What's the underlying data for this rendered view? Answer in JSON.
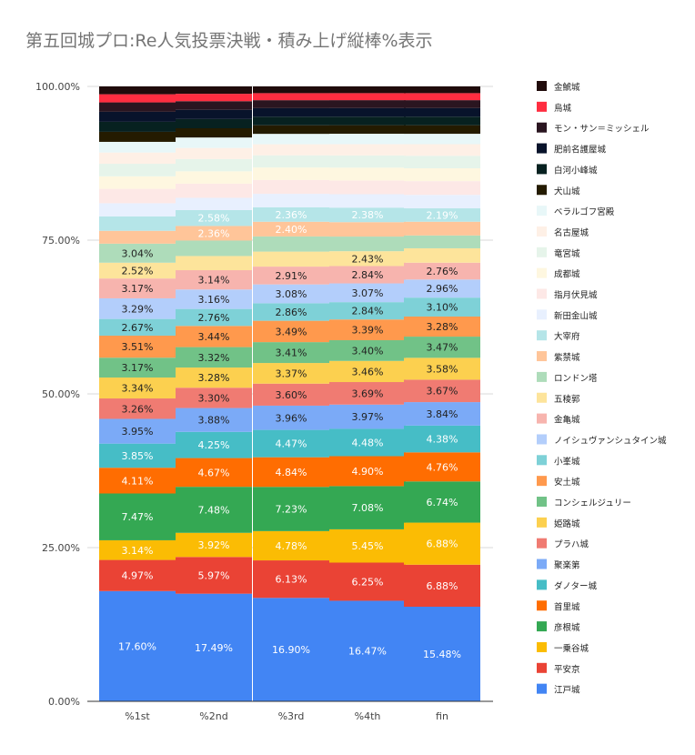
{
  "title": "第五回城プロ:Re人気投票決戦・積み上げ縦棒%表示",
  "chart_data": {
    "type": "bar",
    "stacked": "percent",
    "title": "第五回城プロ:Re人気投票決戦・積み上げ縦棒%表示",
    "xlabel": "",
    "ylabel": "",
    "ylim": [
      0,
      100
    ],
    "yticks": [
      "0.00%",
      "25.00%",
      "50.00%",
      "75.00%",
      "100.00%"
    ],
    "grid": true,
    "legend_position": "right",
    "categories": [
      "%1st",
      "%2nd",
      "%3rd",
      "%4th",
      "fin"
    ],
    "series": [
      {
        "name": "江戸城",
        "color": "#4285f4",
        "values": [
          17.6,
          17.49,
          16.9,
          16.47,
          15.48
        ]
      },
      {
        "name": "平安京",
        "color": "#ea4335",
        "values": [
          4.97,
          5.97,
          6.13,
          6.25,
          6.88
        ]
      },
      {
        "name": "一乗谷城",
        "color": "#fbbc04",
        "values": [
          3.14,
          3.92,
          4.78,
          5.45,
          6.88
        ]
      },
      {
        "name": "彦根城",
        "color": "#34a853",
        "values": [
          7.47,
          7.48,
          7.23,
          7.08,
          6.74
        ]
      },
      {
        "name": "首里城",
        "color": "#ff6d01",
        "values": [
          4.11,
          4.67,
          4.84,
          4.9,
          4.76
        ]
      },
      {
        "name": "ダノター城",
        "color": "#46bdc6",
        "values": [
          3.85,
          4.25,
          4.47,
          4.48,
          4.38
        ]
      },
      {
        "name": "聚楽第",
        "color": "#7baaf7",
        "values": [
          3.95,
          3.88,
          3.96,
          3.97,
          3.84
        ]
      },
      {
        "name": "プラハ城",
        "color": "#f07b72",
        "values": [
          3.26,
          3.3,
          3.6,
          3.69,
          3.67
        ]
      },
      {
        "name": "姫路城",
        "color": "#fcd04f",
        "values": [
          3.34,
          3.28,
          3.37,
          3.46,
          3.58
        ]
      },
      {
        "name": "コンシェルジュリー",
        "color": "#71c287",
        "values": [
          3.17,
          3.32,
          3.41,
          3.4,
          3.47
        ]
      },
      {
        "name": "安土城",
        "color": "#ff994d",
        "values": [
          3.51,
          3.44,
          3.49,
          3.39,
          3.28
        ]
      },
      {
        "name": "小峯城",
        "color": "#7ed1d7",
        "values": [
          2.67,
          2.76,
          2.86,
          2.84,
          3.1
        ]
      },
      {
        "name": "ノイシュヴァンシュタイン城",
        "color": "#b3cefb",
        "values": [
          3.29,
          3.16,
          3.08,
          3.07,
          2.96
        ]
      },
      {
        "name": "金亀城",
        "color": "#f7b4ae",
        "values": [
          3.17,
          3.14,
          2.91,
          2.84,
          2.76
        ]
      },
      {
        "name": "五稜郭",
        "color": "#fde49b",
        "values": [
          2.52,
          2.3,
          2.45,
          2.43,
          2.35
        ]
      },
      {
        "name": "ロンドン塔",
        "color": "#aedcba",
        "values": [
          3.04,
          2.52,
          2.48,
          2.4,
          2.1
        ]
      },
      {
        "name": "紫禁城",
        "color": "#ffc599",
        "values": [
          2.05,
          2.36,
          2.4,
          2.36,
          2.25
        ]
      },
      {
        "name": "大宰府",
        "color": "#b5e5e8",
        "values": [
          2.3,
          2.58,
          2.36,
          2.38,
          2.19
        ]
      },
      {
        "name": "新田金山城",
        "color": "#e8f0fe",
        "values": [
          2.1,
          2.0,
          2.2,
          2.2,
          2.2
        ]
      },
      {
        "name": "指月伏見城",
        "color": "#fde8e6",
        "values": [
          2.3,
          2.3,
          2.25,
          2.25,
          2.25
        ]
      },
      {
        "name": "成都城",
        "color": "#fef7e0",
        "values": [
          2.0,
          2.0,
          2.05,
          2.1,
          2.1
        ]
      },
      {
        "name": "竜宮城",
        "color": "#e6f4ea",
        "values": [
          2.0,
          2.0,
          2.0,
          2.0,
          2.05
        ]
      },
      {
        "name": "名古屋城",
        "color": "#fef0e6",
        "values": [
          1.8,
          1.8,
          1.8,
          1.85,
          1.9
        ]
      },
      {
        "name": "ベラルゴフ宮殿",
        "color": "#e8f7f8",
        "values": [
          1.7,
          1.7,
          1.7,
          1.7,
          1.7
        ]
      },
      {
        "name": "犬山城",
        "color": "#241b00",
        "values": [
          1.6,
          1.5,
          1.4,
          1.4,
          1.4
        ]
      },
      {
        "name": "白河小峰城",
        "color": "#072120",
        "values": [
          1.6,
          1.5,
          1.4,
          1.4,
          1.4
        ]
      },
      {
        "name": "肥前名護屋城",
        "color": "#08132b",
        "values": [
          1.6,
          1.5,
          1.4,
          1.4,
          1.4
        ]
      },
      {
        "name": "モン・サン＝ミッシェル",
        "color": "#2a1520",
        "values": [
          1.5,
          1.4,
          1.3,
          1.3,
          1.3
        ]
      },
      {
        "name": "烏城",
        "color": "#ff2d40",
        "values": [
          1.3,
          1.2,
          1.15,
          1.15,
          1.15
        ]
      },
      {
        "name": "金鯱城",
        "color": "#200b0b",
        "values": [
          1.25,
          1.2,
          1.1,
          1.1,
          1.1
        ]
      }
    ],
    "data_labels": [
      {
        "series": "江戸城",
        "labels": [
          "17.60%",
          "17.49%",
          "16.90%",
          "16.47%",
          "15.48%"
        ],
        "color": "#ffffff"
      },
      {
        "series": "平安京",
        "labels": [
          "4.97%",
          "5.97%",
          "6.13%",
          "6.25%",
          "6.88%"
        ],
        "color": "#ffffff"
      },
      {
        "series": "一乗谷城",
        "labels": [
          "3.14%",
          "3.92%",
          "4.78%",
          "5.45%",
          "6.88%"
        ],
        "color": "#ffffff"
      },
      {
        "series": "彦根城",
        "labels": [
          "7.47%",
          "7.48%",
          "7.23%",
          "7.08%",
          "6.74%"
        ],
        "color": "#ffffff"
      },
      {
        "series": "首里城",
        "labels": [
          "4.11%",
          "4.67%",
          "4.84%",
          "4.90%",
          "4.76%"
        ],
        "color": "#ffffff"
      },
      {
        "series": "ダノター城",
        "labels": [
          "3.85%",
          "4.25%",
          "4.47%",
          "4.48%",
          "4.38%"
        ],
        "color": "#ffffff"
      },
      {
        "series": "聚楽第",
        "labels": [
          "3.95%",
          "3.88%",
          "3.96%",
          "3.97%",
          "3.84%"
        ],
        "color": "#222222"
      },
      {
        "series": "プラハ城",
        "labels": [
          "3.26%",
          "3.30%",
          "3.60%",
          "3.69%",
          "3.67%"
        ],
        "color": "#222222"
      },
      {
        "series": "姫路城",
        "labels": [
          "3.34%",
          "3.28%",
          "3.37%",
          "3.46%",
          "3.58%"
        ],
        "color": "#222222"
      },
      {
        "series": "コンシェルジュリー",
        "labels": [
          "3.17%",
          "3.32%",
          "3.41%",
          "3.40%",
          "3.47%"
        ],
        "color": "#222222"
      },
      {
        "series": "安土城",
        "labels": [
          "3.51%",
          "3.44%",
          "3.49%",
          "3.39%",
          "3.28%"
        ],
        "color": "#222222"
      },
      {
        "series": "小峯城",
        "labels": [
          "2.67%",
          "2.76%",
          "2.86%",
          "2.84%",
          "3.10%"
        ],
        "color": "#222222"
      },
      {
        "series": "ノイシュヴァンシュタイン城",
        "labels": [
          "3.29%",
          "3.16%",
          "3.08%",
          "3.07%",
          "2.96%"
        ],
        "color": "#222222"
      },
      {
        "series": "金亀城",
        "labels": [
          "3.17%",
          "3.14%",
          "2.91%",
          "2.84%",
          "2.76%"
        ],
        "color": "#222222"
      },
      {
        "series": "五稜郭",
        "labels": [
          "2.52%",
          "",
          "",
          "2.43%",
          ""
        ],
        "color": "#222222"
      },
      {
        "series": "ロンドン塔",
        "labels": [
          "3.04%",
          "",
          "",
          "",
          ""
        ],
        "color": "#222222"
      },
      {
        "series": "紫禁城",
        "labels": [
          "",
          "2.36%",
          "2.40%",
          "",
          ""
        ],
        "color": "#ffffff"
      },
      {
        "series": "大宰府",
        "labels": [
          "",
          "2.58%",
          "2.36%",
          "2.38%",
          "2.19%"
        ],
        "color": "#ffffff"
      }
    ]
  }
}
